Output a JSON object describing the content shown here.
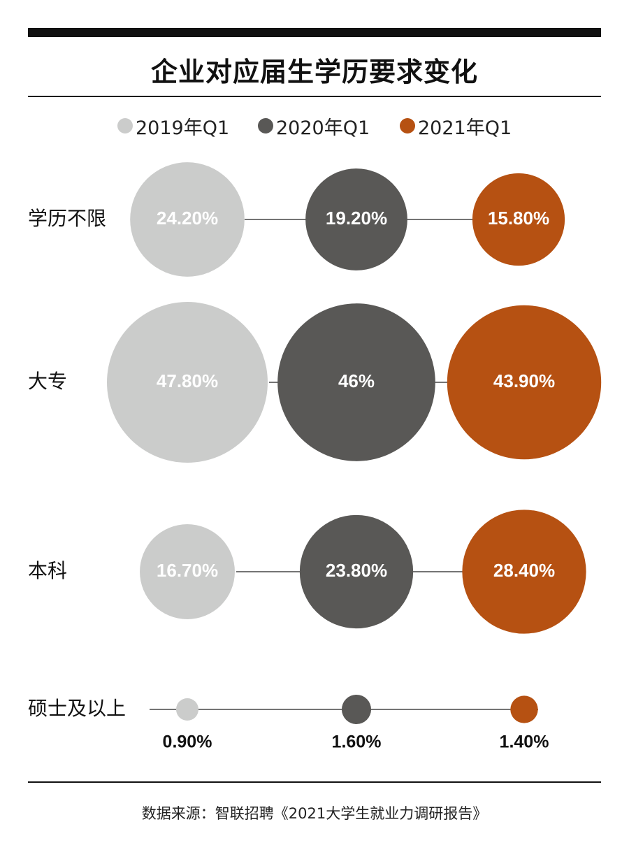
{
  "title": "企业对应届生学历要求变化",
  "source": "数据来源：智联招聘《2021大学生就业力调研报告》",
  "colors": {
    "2019年Q1": "#cbcccb",
    "2020年Q1": "#595856",
    "2021年Q1": "#b65112"
  },
  "chart_data": {
    "type": "bubble",
    "title": "企业对应届生学历要求变化",
    "legend_position": "top",
    "series": [
      {
        "name": "2019年Q1"
      },
      {
        "name": "2020年Q1"
      },
      {
        "name": "2021年Q1"
      }
    ],
    "categories": [
      "学历不限",
      "大专",
      "本科",
      "硕士及以上"
    ],
    "values": [
      [
        24.2,
        19.2,
        15.8
      ],
      [
        47.8,
        46.0,
        43.9
      ],
      [
        16.7,
        23.8,
        28.4
      ],
      [
        0.9,
        1.6,
        1.4
      ]
    ],
    "labels": [
      [
        "24.20%",
        "19.20%",
        "15.80%"
      ],
      [
        "47.80%",
        "46%",
        "43.90%"
      ],
      [
        "16.70%",
        "23.80%",
        "28.40%"
      ],
      [
        "0.90%",
        "1.60%",
        "1.40%"
      ]
    ],
    "unit": "%"
  }
}
